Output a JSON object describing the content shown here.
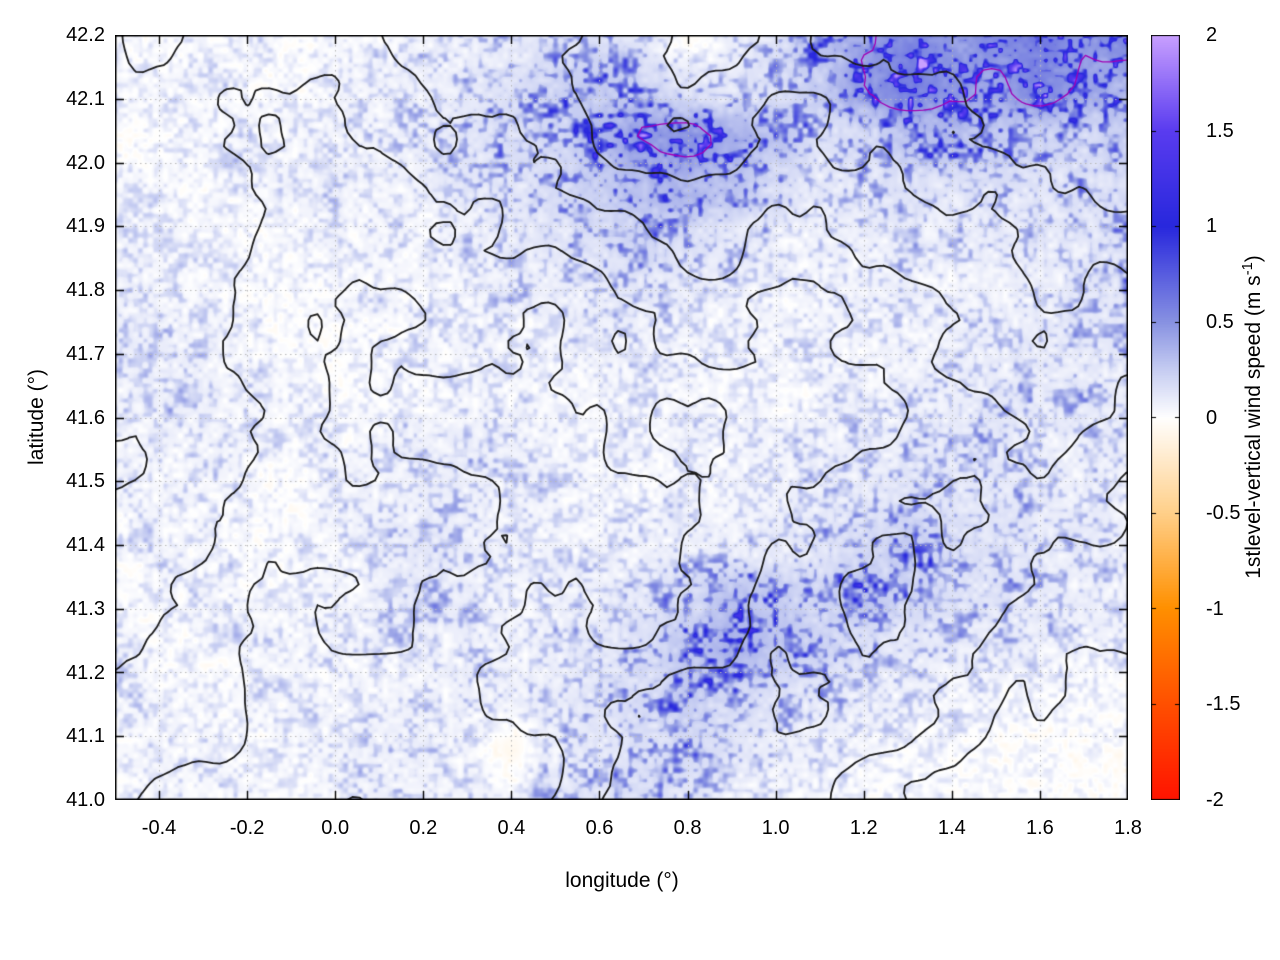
{
  "chart_data": {
    "type": "heatmap",
    "title": "",
    "xlabel": "longitude (°)",
    "ylabel": "latitude (°)",
    "xlim": [
      -0.5,
      1.8
    ],
    "ylim": [
      41.0,
      42.2
    ],
    "grid": "dotted",
    "xticks": {
      "values": [
        -0.4,
        -0.2,
        0.0,
        0.2,
        0.4,
        0.6,
        0.8,
        1.0,
        1.2,
        1.4,
        1.6,
        1.8
      ],
      "labels": [
        "-0.4",
        "-0.2",
        "0.0",
        "0.2",
        "0.4",
        "0.6",
        "0.8",
        "1.0",
        "1.2",
        "1.4",
        "1.6",
        "1.8"
      ]
    },
    "yticks": {
      "values": [
        41.0,
        41.1,
        41.2,
        41.3,
        41.4,
        41.5,
        41.6,
        41.7,
        41.8,
        41.9,
        42.0,
        42.1,
        42.2
      ],
      "labels": [
        "41.0",
        "41.1",
        "41.2",
        "41.3",
        "41.4",
        "41.5",
        "41.6",
        "41.7",
        "41.8",
        "41.9",
        "42.0",
        "42.1",
        "42.2"
      ]
    },
    "colorbar": {
      "label_prefix": "1stlevel-vertical wind speed (m s",
      "label_sup": "-1",
      "label_suffix": ")",
      "min": -2,
      "max": 2,
      "tick_values": [
        2,
        1.5,
        1,
        0.5,
        0,
        -0.5,
        -1,
        -1.5,
        -2
      ],
      "tick_labels": [
        "2",
        "1.5",
        "1",
        "0.5",
        "0",
        "-0.5",
        "-1",
        "-1.5",
        "-2"
      ],
      "stops": [
        {
          "v": -2.0,
          "rgb": [
            255,
            20,
            0
          ]
        },
        {
          "v": -1.5,
          "rgb": [
            255,
            80,
            0
          ]
        },
        {
          "v": -1.0,
          "rgb": [
            255,
            144,
            0
          ]
        },
        {
          "v": -0.5,
          "rgb": [
            255,
            208,
            138
          ]
        },
        {
          "v": 0.0,
          "rgb": [
            255,
            255,
            255
          ]
        },
        {
          "v": 0.25,
          "rgb": [
            198,
            205,
            242
          ]
        },
        {
          "v": 0.5,
          "rgb": [
            136,
            146,
            226
          ]
        },
        {
          "v": 1.0,
          "rgb": [
            40,
            40,
            221
          ]
        },
        {
          "v": 1.5,
          "rgb": [
            90,
            60,
            240
          ]
        },
        {
          "v": 2.0,
          "rgb": [
            201,
            160,
            255
          ]
        }
      ]
    },
    "field": {
      "description": "Coarse estimate of mean 1st-level vertical wind speed (m/s) read from the map; row 0 = north (lat 42.2), col 0 = west (lon -0.5). Strongest updrafts: NE corner and band near lat 42.0 / lon 0.6-1.0, diagonal band lon 0.8-1.2 / lat 41.2-41.45; elsewhere near zero with faint speckle.",
      "lon_start": -0.5,
      "lon_step": 0.1,
      "lat_start": 42.2,
      "lat_step": -0.08,
      "values": [
        [
          0.15,
          0.1,
          0.1,
          0.2,
          0.1,
          0.15,
          0.2,
          0.25,
          0.3,
          0.4,
          0.45,
          0.5,
          0.4,
          -0.1,
          0.3,
          0.5,
          0.9,
          1.3,
          1.7,
          1.4,
          1.6,
          1.8,
          1.4,
          1.7
        ],
        [
          0.1,
          0.15,
          0.2,
          0.15,
          0.1,
          0.2,
          0.25,
          0.3,
          0.35,
          0.5,
          0.7,
          0.8,
          0.7,
          0.5,
          0.4,
          0.5,
          0.8,
          1.4,
          1.8,
          1.5,
          1.2,
          1.7,
          1.3,
          1.1
        ],
        [
          0.1,
          0.1,
          0.15,
          0.2,
          0.2,
          0.2,
          0.25,
          0.3,
          0.45,
          0.55,
          0.6,
          1.0,
          1.4,
          1.5,
          1.2,
          0.9,
          0.5,
          0.6,
          0.9,
          1.0,
          0.8,
          0.7,
          0.6,
          0.8
        ],
        [
          0.15,
          0.2,
          0.1,
          0.2,
          0.2,
          0.25,
          0.2,
          0.3,
          0.4,
          0.45,
          0.6,
          0.8,
          1.0,
          1.1,
          0.9,
          0.6,
          0.4,
          0.4,
          0.5,
          0.45,
          0.5,
          0.45,
          0.5,
          0.6
        ],
        [
          0.2,
          0.15,
          0.2,
          0.1,
          0.15,
          0.2,
          0.2,
          0.2,
          0.3,
          0.35,
          0.45,
          0.55,
          0.65,
          0.55,
          0.4,
          0.3,
          0.25,
          0.3,
          0.3,
          0.3,
          0.35,
          0.4,
          0.4,
          0.5
        ],
        [
          0.3,
          0.2,
          0.2,
          0.15,
          0.1,
          0.15,
          0.2,
          0.2,
          0.2,
          0.3,
          0.3,
          0.35,
          0.4,
          0.3,
          0.25,
          0.2,
          0.2,
          0.25,
          0.3,
          0.25,
          0.3,
          0.3,
          0.4,
          0.45
        ],
        [
          0.3,
          0.3,
          0.25,
          0.2,
          0.1,
          0.1,
          0.15,
          0.2,
          0.2,
          0.2,
          0.2,
          0.25,
          0.25,
          0.2,
          0.2,
          0.2,
          0.2,
          0.2,
          0.25,
          0.3,
          0.3,
          0.4,
          0.35,
          0.4
        ],
        [
          0.25,
          0.3,
          0.3,
          0.2,
          0.15,
          0.1,
          0.1,
          0.15,
          0.2,
          0.2,
          0.15,
          0.2,
          0.2,
          0.2,
          0.2,
          0.15,
          0.2,
          0.25,
          0.3,
          0.3,
          0.4,
          0.35,
          0.4,
          0.35
        ],
        [
          0.2,
          0.25,
          0.25,
          0.2,
          0.2,
          0.15,
          0.2,
          0.3,
          0.3,
          0.25,
          0.2,
          0.15,
          0.2,
          0.2,
          0.2,
          0.2,
          0.25,
          0.3,
          0.35,
          0.4,
          0.4,
          0.35,
          0.3,
          0.3
        ],
        [
          0.2,
          0.2,
          0.2,
          0.15,
          0.1,
          0.2,
          0.25,
          0.3,
          0.3,
          0.25,
          0.2,
          0.2,
          0.2,
          0.2,
          0.2,
          0.25,
          0.3,
          0.35,
          0.5,
          0.45,
          0.4,
          0.35,
          0.3,
          0.3
        ],
        [
          0.15,
          0.2,
          0.2,
          0.1,
          0.15,
          0.2,
          0.3,
          0.4,
          0.3,
          0.25,
          0.2,
          0.2,
          0.25,
          0.3,
          0.3,
          0.35,
          0.45,
          0.6,
          0.8,
          0.6,
          0.5,
          0.4,
          0.35,
          0.3
        ],
        [
          0.1,
          0.15,
          0.2,
          0.2,
          0.1,
          0.2,
          0.3,
          0.4,
          0.3,
          0.2,
          0.25,
          0.3,
          0.4,
          0.6,
          0.9,
          0.8,
          0.65,
          0.9,
          0.7,
          0.5,
          0.45,
          0.35,
          0.3,
          0.25
        ],
        [
          0.2,
          0.1,
          0.15,
          0.2,
          0.2,
          0.2,
          0.25,
          0.3,
          0.3,
          0.25,
          0.3,
          0.4,
          0.55,
          0.85,
          1.1,
          0.9,
          0.7,
          0.5,
          0.4,
          0.35,
          0.3,
          0.3,
          0.25,
          0.2
        ],
        [
          0.2,
          0.2,
          0.1,
          0.15,
          0.2,
          0.2,
          0.2,
          0.25,
          0.3,
          0.3,
          0.3,
          0.45,
          0.6,
          0.8,
          0.6,
          0.5,
          0.4,
          0.3,
          0.25,
          0.2,
          0.15,
          0.1,
          0.1,
          0.1
        ],
        [
          0.15,
          0.2,
          0.2,
          0.1,
          0.15,
          0.2,
          0.3,
          0.3,
          0.2,
          -0.15,
          0.3,
          0.4,
          0.5,
          0.6,
          0.45,
          0.3,
          0.25,
          0.2,
          0.1,
          0.1,
          0.05,
          0.05,
          0.05,
          0.05
        ],
        [
          0.1,
          0.15,
          0.2,
          0.2,
          0.1,
          0.2,
          0.3,
          0.25,
          0.2,
          0.2,
          0.4,
          0.5,
          0.55,
          0.4,
          0.3,
          0.2,
          0.2,
          0.1,
          0.1,
          0.05,
          0.05,
          0.05,
          0.05,
          0.05
        ]
      ]
    },
    "terrain_contours": {
      "description": "Approximate relative elevation used for the black topographic contour overlay; high in NE (Pyrenean foothills), low valley through the centre, secondary ridge running diagonally in the lower right. Row 0 = north.",
      "levels": [
        0.32,
        0.42,
        0.52,
        0.62,
        0.72
      ],
      "color": "#1c1c1c",
      "values": [
        [
          0.55,
          0.5,
          0.45,
          0.5,
          0.55,
          0.6,
          0.7,
          0.75,
          0.7,
          0.75,
          0.8,
          0.85,
          0.9
        ],
        [
          0.5,
          0.45,
          0.4,
          0.45,
          0.5,
          0.55,
          0.65,
          0.7,
          0.6,
          0.65,
          0.7,
          0.75,
          0.8
        ],
        [
          0.45,
          0.5,
          0.4,
          0.35,
          0.4,
          0.45,
          0.5,
          0.55,
          0.5,
          0.55,
          0.6,
          0.65,
          0.7
        ],
        [
          0.5,
          0.45,
          0.35,
          0.3,
          0.35,
          0.3,
          0.4,
          0.45,
          0.4,
          0.45,
          0.55,
          0.6,
          0.55
        ],
        [
          0.55,
          0.5,
          0.4,
          0.3,
          0.25,
          0.3,
          0.35,
          0.3,
          0.35,
          0.4,
          0.5,
          0.55,
          0.5
        ],
        [
          0.5,
          0.45,
          0.35,
          0.3,
          0.35,
          0.3,
          0.25,
          0.3,
          0.4,
          0.5,
          0.55,
          0.45,
          0.4
        ],
        [
          0.45,
          0.4,
          0.3,
          0.35,
          0.3,
          0.35,
          0.3,
          0.35,
          0.45,
          0.55,
          0.5,
          0.4,
          0.35
        ],
        [
          0.4,
          0.35,
          0.3,
          0.25,
          0.3,
          0.35,
          0.4,
          0.45,
          0.55,
          0.5,
          0.4,
          0.3,
          0.25
        ],
        [
          0.35,
          0.3,
          0.25,
          0.3,
          0.25,
          0.3,
          0.45,
          0.5,
          0.45,
          0.35,
          0.25,
          0.2,
          0.15
        ]
      ]
    },
    "wind_contour": {
      "description": "Thin magenta contour around strongest updraft cores (top-centre and NE corner).",
      "level": 1.35,
      "color": "#a000b4"
    },
    "render_hints": {
      "speckle_seeds": [
        11,
        23,
        47
      ],
      "speckle_cells": [
        5,
        11,
        24
      ],
      "terrain_wiggle": [
        0.035,
        0.018
      ],
      "legend_position": "right-colorbar",
      "background": "#ffffff"
    }
  }
}
